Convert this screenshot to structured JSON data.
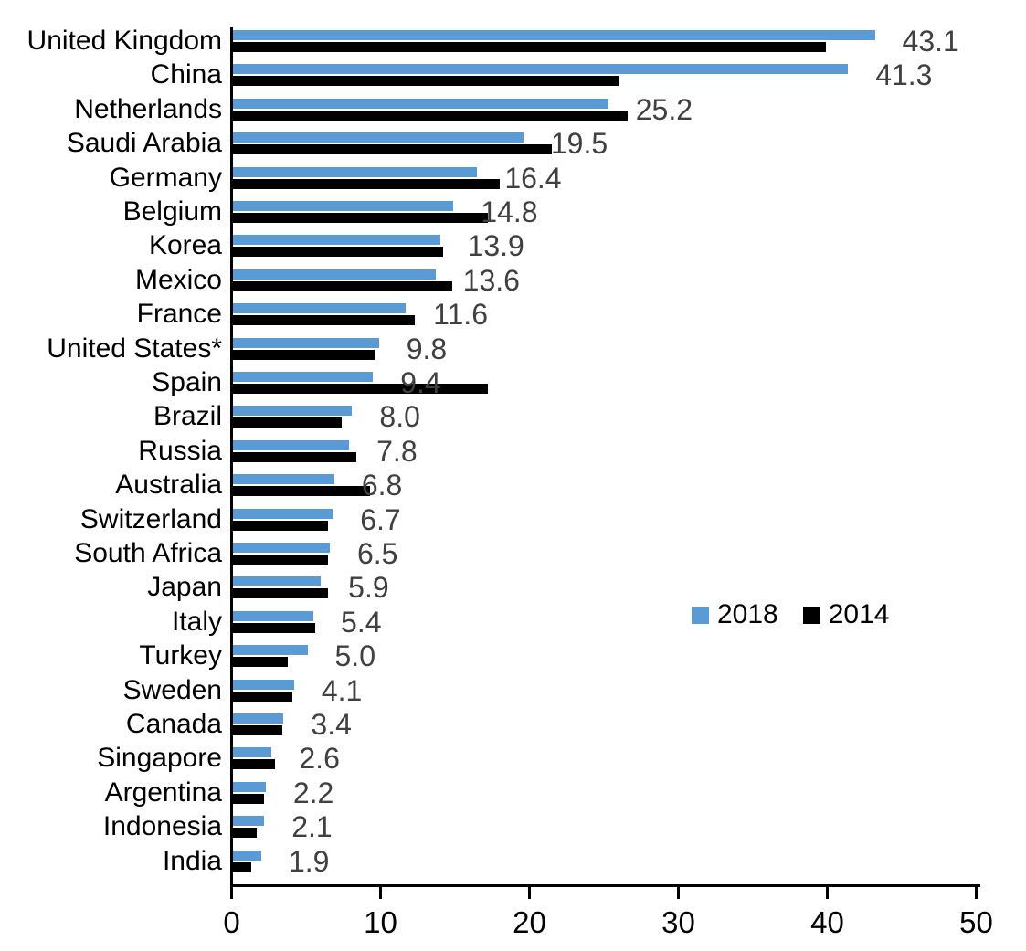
{
  "chart_data": {
    "type": "bar",
    "orientation": "horizontal",
    "title": "",
    "xlabel": "",
    "ylabel": "",
    "xlim": [
      0,
      50
    ],
    "x_ticks": [
      0,
      10,
      20,
      30,
      40,
      50
    ],
    "grid": false,
    "legend_position": "middle-right",
    "categories": [
      "United Kingdom",
      "China",
      "Netherlands",
      "Saudi Arabia",
      "Germany",
      "Belgium",
      "Korea",
      "Mexico",
      "France",
      "United States*",
      "Spain",
      "Brazil",
      "Russia",
      "Australia",
      "Switzerland",
      "South Africa",
      "Japan",
      "Italy",
      "Turkey",
      "Sweden",
      "Canada",
      "Singapore",
      "Argentina",
      "Indonesia",
      "India"
    ],
    "series": [
      {
        "name": "2018",
        "color": "#5B9BD5",
        "values": [
          43.1,
          41.3,
          25.2,
          19.5,
          16.4,
          14.8,
          13.9,
          13.6,
          11.6,
          9.8,
          9.4,
          8.0,
          7.8,
          6.8,
          6.7,
          6.5,
          5.9,
          5.4,
          5.0,
          4.1,
          3.4,
          2.6,
          2.2,
          2.1,
          1.9
        ]
      },
      {
        "name": "2014",
        "color": "#000000",
        "values": [
          39.8,
          25.9,
          26.5,
          21.4,
          17.9,
          17.1,
          14.1,
          14.7,
          12.2,
          9.5,
          17.1,
          7.3,
          8.3,
          9.2,
          6.4,
          6.4,
          6.4,
          5.5,
          3.7,
          4.0,
          3.3,
          2.8,
          2.1,
          1.6,
          1.2
        ]
      }
    ],
    "data_labels": {
      "labeled_series": "2018",
      "decimals": 1,
      "color": "#404040"
    }
  }
}
